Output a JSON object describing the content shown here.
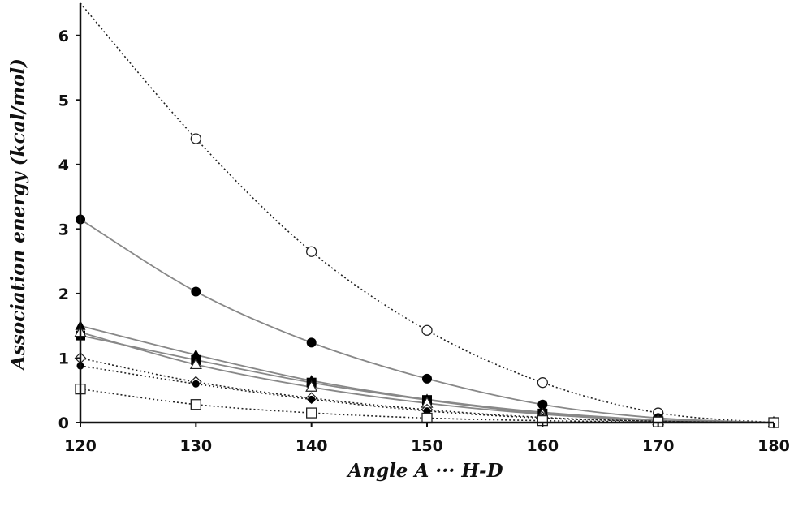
{
  "chart_data": {
    "type": "scatter",
    "title": "",
    "xlabel": "Angle A ··· H-D",
    "ylabel": "Association energy (kcal/mol)",
    "xlim": [
      120,
      180
    ],
    "ylim": [
      0,
      6.5
    ],
    "xticks": [
      120,
      130,
      140,
      150,
      160,
      170,
      180
    ],
    "yticks": [
      0,
      1,
      2,
      3,
      4,
      5,
      6
    ],
    "grid": false,
    "legend": "none",
    "series": [
      {
        "marker": "circle-open",
        "line": "dotted",
        "x": [
          130,
          140,
          150,
          160,
          170,
          180
        ],
        "y": [
          4.4,
          2.65,
          1.43,
          0.62,
          0.15,
          0.0
        ],
        "curve_at_120": 6.55
      },
      {
        "marker": "circle-filled",
        "line": "solid",
        "x": [
          120,
          130,
          140,
          150,
          160,
          170,
          180
        ],
        "y": [
          3.15,
          2.03,
          1.24,
          0.68,
          0.28,
          0.07,
          0.0
        ]
      },
      {
        "marker": "triangle-filled",
        "line": "solid",
        "x": [
          120,
          130,
          140,
          150,
          160,
          170,
          180
        ],
        "y": [
          1.5,
          1.05,
          0.65,
          0.36,
          0.16,
          0.04,
          0.0
        ]
      },
      {
        "marker": "square-filled",
        "line": "solid",
        "x": [
          120,
          130,
          140,
          150,
          160,
          170,
          180
        ],
        "y": [
          1.35,
          0.97,
          0.62,
          0.35,
          0.14,
          0.03,
          0.0
        ]
      },
      {
        "marker": "triangle-open",
        "line": "solid",
        "x": [
          120,
          130,
          140,
          150,
          160,
          170,
          180
        ],
        "y": [
          1.4,
          0.9,
          0.55,
          0.3,
          0.13,
          0.03,
          0.0
        ]
      },
      {
        "marker": "diamond-open",
        "line": "dotted",
        "x": [
          120,
          130,
          140,
          150,
          160,
          170,
          180
        ],
        "y": [
          1.0,
          0.63,
          0.38,
          0.2,
          0.08,
          0.02,
          0.0
        ]
      },
      {
        "marker": "circle-filled-small",
        "line": "dotted",
        "x": [
          120,
          130,
          140,
          150,
          160,
          170,
          180
        ],
        "y": [
          0.88,
          0.6,
          0.36,
          0.18,
          0.07,
          0.02,
          0.0
        ]
      },
      {
        "marker": "square-open",
        "line": "dotted",
        "x": [
          120,
          130,
          140,
          150,
          160,
          170,
          180
        ],
        "y": [
          0.52,
          0.28,
          0.15,
          0.07,
          0.03,
          0.01,
          0.0
        ]
      }
    ]
  }
}
